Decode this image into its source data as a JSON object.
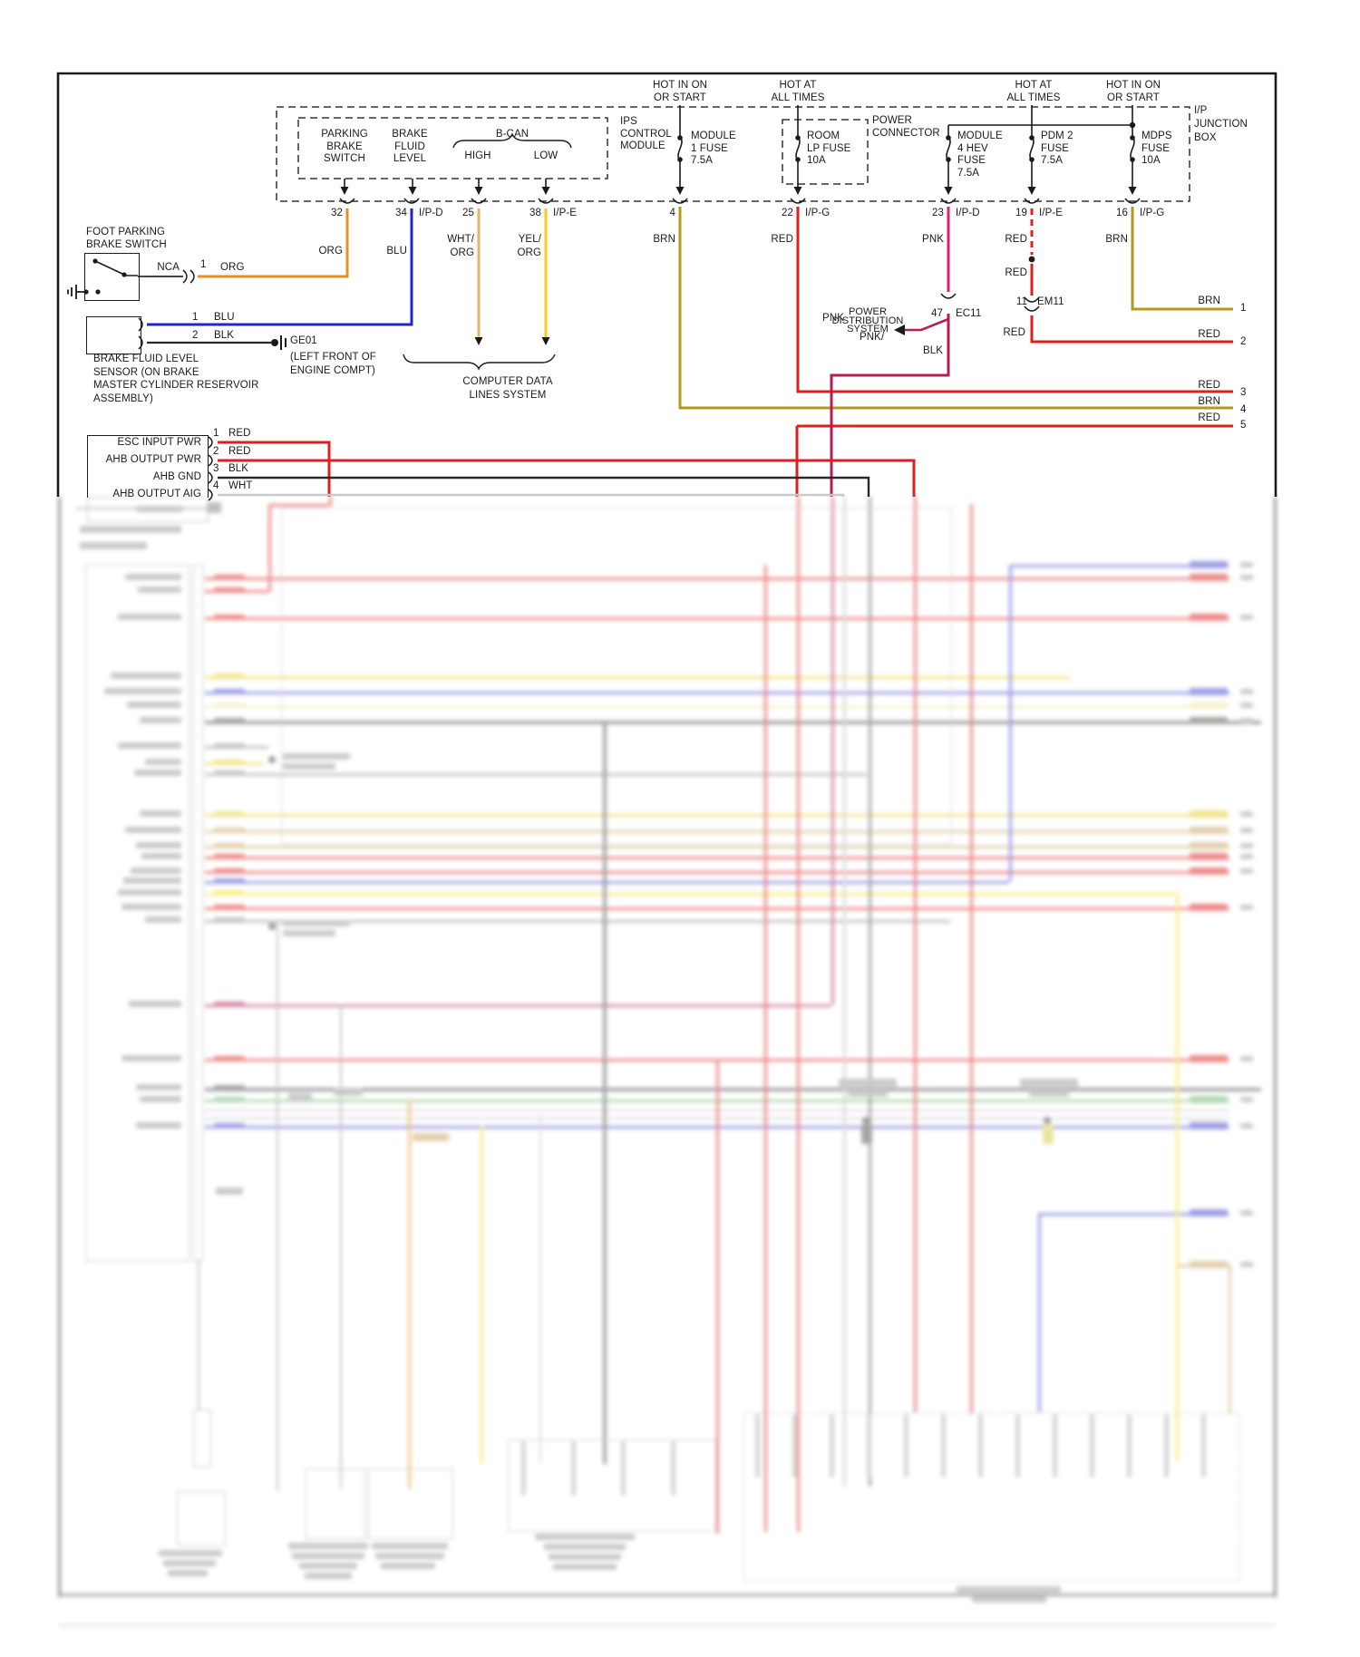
{
  "junction_box": {
    "label": "I/P\nJUNCTION\nBOX",
    "ips_module_label": "IPS\nCONTROL\nMODULE",
    "power_connector_label": "POWER\nCONNECTOR",
    "inputs": {
      "parking": "PARKING\nBRAKE\nSWITCH",
      "brake_fluid": "BRAKE\nFLUID\nLEVEL",
      "bcan": "B-CAN",
      "high": "HIGH",
      "low": "LOW"
    },
    "feeds": {
      "hot_in_on": "HOT IN ON\nOR START",
      "hot_at": "HOT AT\nALL TIMES"
    },
    "fuses": {
      "module1": "MODULE\n1 FUSE\n7.5A",
      "room": "ROOM\nLP FUSE\n10A",
      "module4": "MODULE\n4 HEV\nFUSE\n7.5A",
      "pdm2": "PDM 2\nFUSE\n7.5A",
      "mdps": "MDPS\nFUSE\n10A"
    },
    "pins": [
      {
        "n": "32",
        "c": ""
      },
      {
        "n": "34",
        "c": "I/P-D"
      },
      {
        "n": "25",
        "c": ""
      },
      {
        "n": "38",
        "c": "I/P-E"
      },
      {
        "n": "4",
        "c": ""
      },
      {
        "n": "22",
        "c": "I/P-G"
      },
      {
        "n": "23",
        "c": "I/P-D"
      },
      {
        "n": "19",
        "c": "I/P-E"
      },
      {
        "n": "16",
        "c": "I/P-G"
      }
    ]
  },
  "wire_labels": {
    "org": "ORG",
    "blu": "BLU",
    "wht_org": "WHT/\nORG",
    "yel_org": "YEL/\nORG",
    "brn": "BRN",
    "red": "RED",
    "pnk": "PNK",
    "blk": "BLK",
    "wht": "WHT",
    "nca": "NCA",
    "one": "1",
    "two": "2",
    "pnk_slash": "PNK/",
    "blk_stripe": "BLK"
  },
  "components": {
    "foot_switch": "FOOT PARKING\nBRAKE SWITCH",
    "sensor": "BRAKE FLUID LEVEL\nSENSOR (ON BRAKE\nMASTER CYLINDER RESERVOIR\nASSEMBLY)",
    "ground_id": "GE01",
    "ground_note": "(LEFT FRONT OF\nENGINE COMPT)",
    "computer_data": "COMPUTER DATA\nLINES SYSTEM",
    "power_distribution": "POWER\nDISTRIBUTION\nSYSTEM"
  },
  "connectors": {
    "ec11": {
      "pin": "47",
      "name": "EC11"
    },
    "em11": {
      "pin": "11",
      "name": "EM11"
    }
  },
  "esc_module": {
    "rows": [
      {
        "label": "ESC INPUT PWR",
        "n": "1",
        "c": "RED"
      },
      {
        "label": "AHB OUTPUT PWR",
        "n": "2",
        "c": "RED"
      },
      {
        "label": "AHB GND",
        "n": "3",
        "c": "BLK"
      },
      {
        "label": "AHB OUTPUT AIG",
        "n": "4",
        "c": "WHT"
      }
    ]
  },
  "right_edge": [
    {
      "c": "BRN",
      "n": "1"
    },
    {
      "c": "RED",
      "n": "2"
    },
    {
      "c": "RED",
      "n": "3"
    },
    {
      "c": "BRN",
      "n": "4"
    },
    {
      "c": "RED",
      "n": "5"
    }
  ],
  "colors": {
    "org": "#E8921E",
    "blu": "#2323CC",
    "wht_org": "#E3B46C",
    "yel_org": "#EFCE1D",
    "brn": "#B5991F",
    "red": "#DD1F1F",
    "pnk": "#D6246E",
    "pnk_blk": "#B51E50",
    "blk": "#2A2A2A",
    "wht": "#C9C9C9",
    "line": "#1a1a1a"
  }
}
